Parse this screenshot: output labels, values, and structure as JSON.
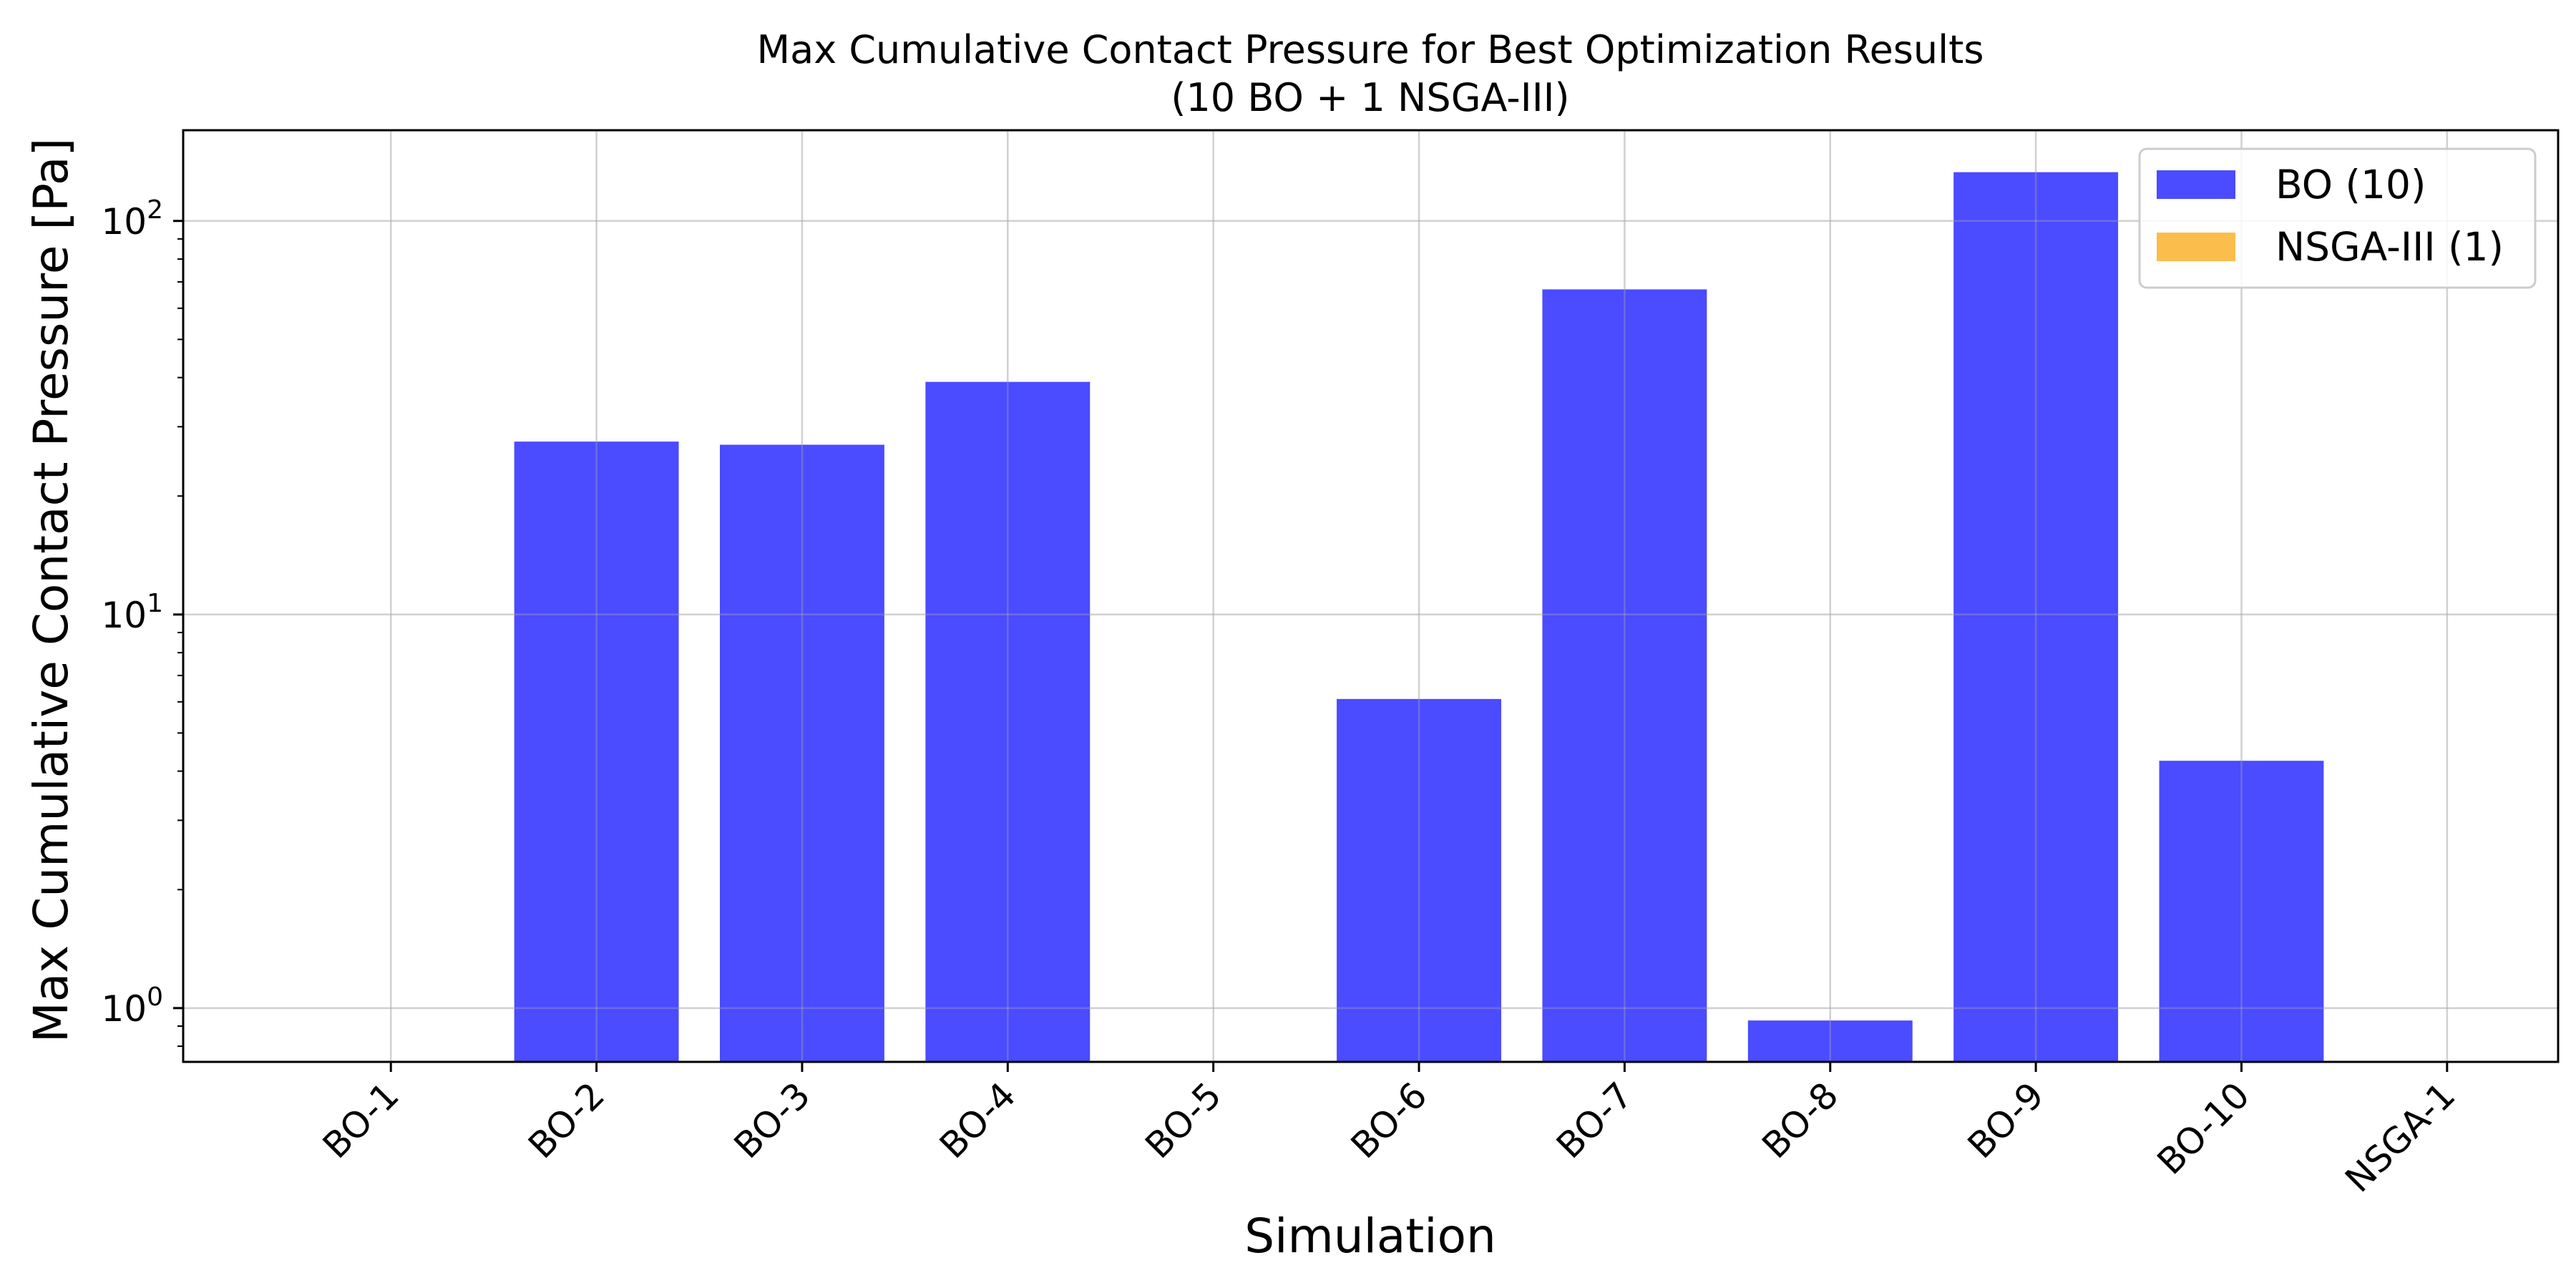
{
  "chart_data": {
    "type": "bar",
    "title": "Max Cumulative Contact Pressure for Best Optimization Results",
    "subtitle": "(10 BO + 1 NSGA-III)",
    "xlabel": "Simulation",
    "ylabel": "Max Cumulative Contact Pressure [Pa]",
    "yscale": "log",
    "ylim": [
      0.73,
      170
    ],
    "yticks": [
      1,
      10,
      100
    ],
    "ytick_labels": [
      {
        "base": "10",
        "exp": "0"
      },
      {
        "base": "10",
        "exp": "1"
      },
      {
        "base": "10",
        "exp": "2"
      }
    ],
    "grid": true,
    "legend_position": "top-right",
    "categories": [
      "BO-1",
      "BO-2",
      "BO-3",
      "BO-4",
      "BO-5",
      "BO-6",
      "BO-7",
      "BO-8",
      "BO-9",
      "BO-10",
      "NSGA-1"
    ],
    "series": [
      {
        "name": "BO (10)",
        "color": "#4b4bff",
        "values": [
          0,
          27.5,
          27,
          39,
          0,
          6.1,
          67,
          0.93,
          133,
          4.25,
          null
        ]
      },
      {
        "name": "NSGA-III (1)",
        "color": "#fbbd4b",
        "values": [
          null,
          null,
          null,
          null,
          null,
          null,
          null,
          null,
          null,
          null,
          0
        ]
      }
    ]
  }
}
